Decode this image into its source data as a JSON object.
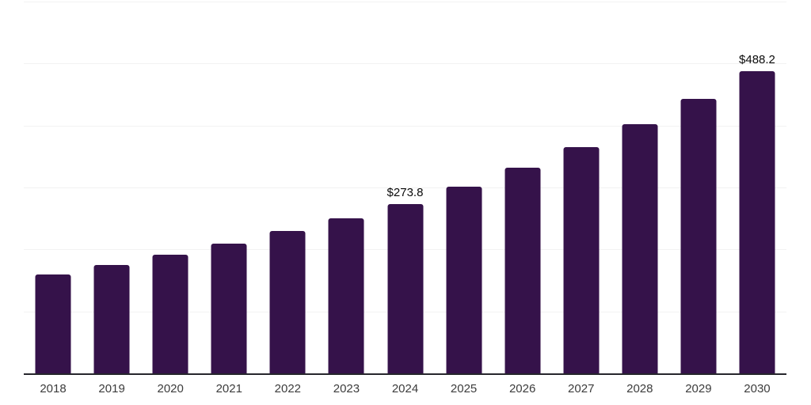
{
  "chart_data": {
    "type": "bar",
    "title": "",
    "xlabel": "",
    "ylabel": "",
    "categories": [
      "2018",
      "2019",
      "2020",
      "2021",
      "2022",
      "2023",
      "2024",
      "2025",
      "2026",
      "2027",
      "2028",
      "2029",
      "2030"
    ],
    "values": [
      160.0,
      175.3,
      191.5,
      209.6,
      229.3,
      250.4,
      273.8,
      301.5,
      332.0,
      365.6,
      402.6,
      443.3,
      488.2
    ],
    "data_labels": [
      "",
      "",
      "",
      "",
      "",
      "",
      "$273.8",
      "",
      "",
      "",
      "",
      "",
      "$488.2"
    ],
    "ylim": [
      0,
      600
    ],
    "gridline_values": [
      100,
      200,
      300,
      400,
      500,
      600
    ],
    "grid": "horizontal, no y tick labels",
    "legend_position": "none",
    "colors": {
      "bar": "#35124A",
      "gridline": "#f2f2f2",
      "axis_line": "#26262c",
      "tick_label": "#3c3c3c",
      "data_label": "#0a0a0a",
      "background": "#ffffff"
    }
  }
}
